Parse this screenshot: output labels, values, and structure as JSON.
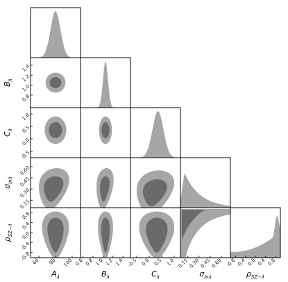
{
  "chart_data": {
    "type": "corner",
    "title": "",
    "parameters": [
      {
        "key": "A",
        "label": "Aλ",
        "range": [
          50,
          110
        ],
        "ticks": [
          "60",
          "80",
          "100"
        ]
      },
      {
        "key": "B",
        "label": "Bλ",
        "range": [
          0.55,
          1.55
        ],
        "ticks": [
          "0.6",
          "0.8",
          "1.0",
          "1.2",
          "1.4"
        ]
      },
      {
        "key": "C",
        "label": "Cλ",
        "range": [
          -0.75,
          1.25
        ],
        "ticks": [
          "-0.5",
          "0.0",
          "0.5",
          "1.0"
        ]
      },
      {
        "key": "sigma",
        "label": "σlnλ",
        "range": [
          0.05,
          0.72
        ],
        "ticks": [
          "0.15",
          "0.30",
          "0.45",
          "0.60"
        ]
      },
      {
        "key": "rho",
        "label": "ρSZ−λ",
        "range": [
          -1.0,
          1.0
        ],
        "ticks": [
          "-0.8",
          "-0.4",
          "0.0",
          "0.4",
          "0.8"
        ]
      }
    ],
    "y_tick_labels": {
      "B": [
        "1.4",
        "1.2",
        "1.0",
        "0.8"
      ],
      "C": [
        "1.0",
        "0.5",
        "0.0",
        "-0.5"
      ],
      "sigma": [
        "0.60",
        "0.45",
        "0.30",
        "0.15"
      ],
      "rho": [
        "0.8",
        "0.4",
        "0.0",
        "-0.4",
        "-0.8"
      ]
    },
    "marginals": {
      "A": {
        "peak": 80,
        "width": 6
      },
      "B": {
        "peak": 1.05,
        "width": 0.05
      },
      "C": {
        "peak": 0.35,
        "width": 0.22
      },
      "sigma": {
        "shape": "declining",
        "max_at": 0.1
      },
      "rho": {
        "shape": "rising",
        "max_at": 0.9
      }
    },
    "contours": [
      {
        "x": "A",
        "y": "B",
        "shape": "ellipse",
        "cx": 80,
        "cy": 1.05,
        "rx": [
          12,
          7
        ],
        "ry": [
          0.2,
          0.11
        ]
      },
      {
        "x": "A",
        "y": "C",
        "shape": "ellipse",
        "cx": 80,
        "cy": 0.35,
        "rx": [
          13,
          8
        ],
        "ry": [
          0.55,
          0.32
        ]
      },
      {
        "x": "B",
        "y": "C",
        "shape": "ellipse",
        "cx": 1.05,
        "cy": 0.35,
        "rx": [
          0.13,
          0.08
        ],
        "ry": [
          0.55,
          0.32
        ]
      },
      {
        "x": "A",
        "y": "sigma",
        "shape": "banana",
        "cx": 77,
        "cy": 0.3,
        "rx": [
          17,
          11
        ],
        "ry": [
          0.28,
          0.17
        ]
      },
      {
        "x": "B",
        "y": "sigma",
        "shape": "banana",
        "cx": 1.03,
        "cy": 0.3,
        "rx": [
          0.16,
          0.09
        ],
        "ry": [
          0.28,
          0.17
        ]
      },
      {
        "x": "C",
        "y": "sigma",
        "shape": "banana",
        "cx": 0.2,
        "cy": 0.25,
        "rx": [
          0.7,
          0.45
        ],
        "ry": [
          0.3,
          0.18
        ]
      },
      {
        "x": "A",
        "y": "rho",
        "shape": "column",
        "cx": 80,
        "cy": -0.1,
        "rx": [
          15,
          9
        ],
        "ry": [
          0.95,
          0.7
        ]
      },
      {
        "x": "B",
        "y": "rho",
        "shape": "column",
        "cx": 1.05,
        "cy": -0.1,
        "rx": [
          0.14,
          0.08
        ],
        "ry": [
          0.95,
          0.7
        ]
      },
      {
        "x": "C",
        "y": "rho",
        "shape": "column",
        "cx": 0.3,
        "cy": -0.1,
        "rx": [
          0.65,
          0.4
        ],
        "ry": [
          0.95,
          0.7
        ]
      },
      {
        "x": "sigma",
        "y": "rho",
        "shape": "corner",
        "cx": 0.1,
        "cy": 0.9
      }
    ],
    "colors": {
      "outer": "#a6a6a6",
      "inner": "#6a6a6a",
      "frame": "#000000"
    }
  }
}
